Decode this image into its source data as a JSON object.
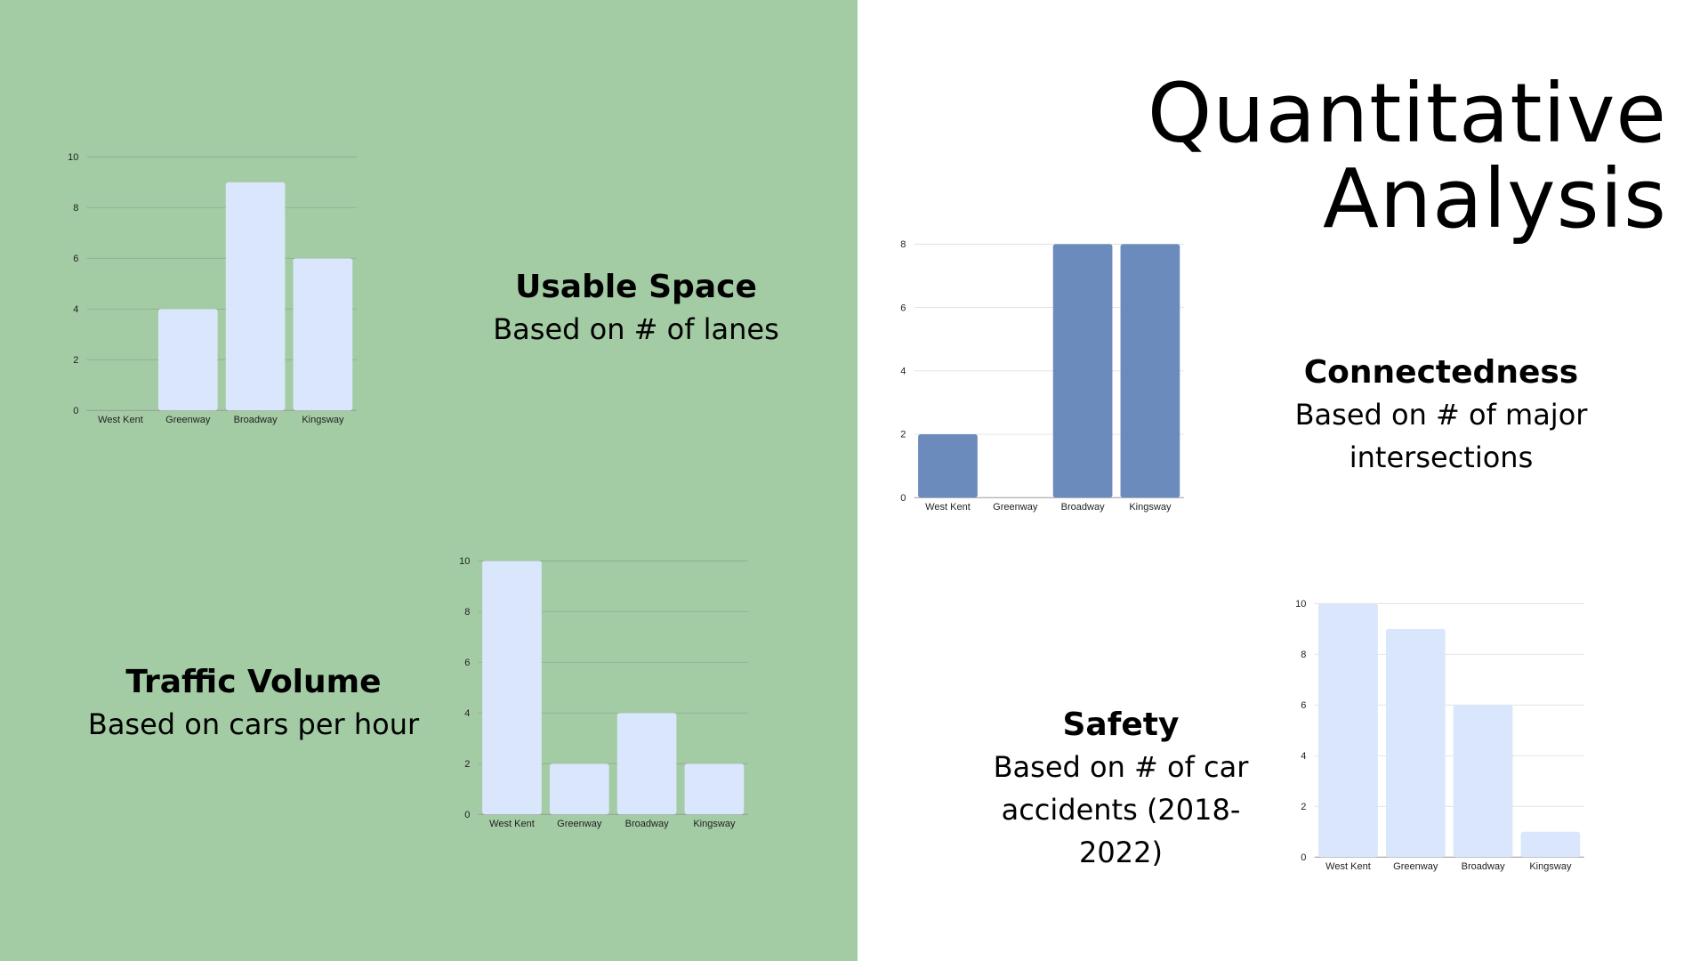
{
  "title": {
    "line1": "Quantitative",
    "line2": "Analysis"
  },
  "panels": [
    {
      "id": "usable-space",
      "heading": "Usable Space",
      "subtitle": "Based on # of lanes"
    },
    {
      "id": "traffic-volume",
      "heading": "Traffic Volume",
      "subtitle": "Based on cars per hour"
    },
    {
      "id": "connectedness",
      "heading": "Connectedness",
      "subtitle": "Based on # of major intersections"
    },
    {
      "id": "safety",
      "heading": "Safety",
      "subtitle": "Based on # of car accidents (2018-2022)"
    }
  ],
  "colors": {
    "left_background": "#a3cba4",
    "light_bar": "#d9e6fc",
    "dark_bar": "#6b8bbd"
  },
  "chart_data": [
    {
      "type": "bar",
      "name": "usable-space",
      "categories": [
        "West Kent",
        "Greenway",
        "Broadway",
        "Kingsway"
      ],
      "values": [
        0,
        4,
        9,
        6
      ],
      "ylim": [
        0,
        10
      ],
      "yticks": [
        0,
        2,
        4,
        6,
        8,
        10
      ],
      "grid": true,
      "bar_color": "#d9e6fc"
    },
    {
      "type": "bar",
      "name": "traffic-volume",
      "categories": [
        "West Kent",
        "Greenway",
        "Broadway",
        "Kingsway"
      ],
      "values": [
        10,
        2,
        4,
        2
      ],
      "ylim": [
        0,
        10
      ],
      "yticks": [
        0,
        2,
        4,
        6,
        8,
        10
      ],
      "grid": true,
      "bar_color": "#d9e6fc"
    },
    {
      "type": "bar",
      "name": "connectedness",
      "categories": [
        "West Kent",
        "Greenway",
        "Broadway",
        "Kingsway"
      ],
      "values": [
        2,
        0,
        8,
        8
      ],
      "ylim": [
        0,
        8
      ],
      "yticks": [
        0,
        2,
        4,
        6,
        8
      ],
      "grid": true,
      "bar_color": "#6b8bbd"
    },
    {
      "type": "bar",
      "name": "safety",
      "categories": [
        "West Kent",
        "Greenway",
        "Broadway",
        "Kingsway"
      ],
      "values": [
        10,
        9,
        6,
        1
      ],
      "ylim": [
        0,
        10
      ],
      "yticks": [
        0,
        2,
        4,
        6,
        8,
        10
      ],
      "grid": true,
      "bar_color": "#d9e6fc"
    }
  ]
}
